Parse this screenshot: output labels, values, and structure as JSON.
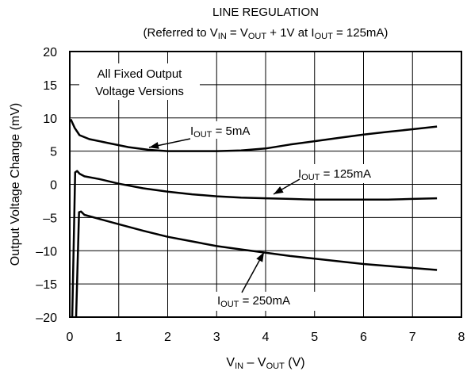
{
  "chart_data": {
    "type": "line",
    "title": "LINE REGULATION",
    "subtitle": "(Referred to V_IN = V_OUT + 1V at I_OUT = 125mA)",
    "subtitle_parts": [
      "(Referred to V",
      "IN",
      " = V",
      "OUT",
      " + 1V at I",
      "OUT",
      " = 125mA)"
    ],
    "xlabel_parts": [
      "V",
      "IN",
      " – V",
      "OUT",
      " (V)"
    ],
    "ylabel": "Output Voltage Change (mV)",
    "xlim": [
      0,
      8
    ],
    "ylim": [
      -20,
      20
    ],
    "x_ticks": [
      "0",
      "1",
      "2",
      "3",
      "4",
      "5",
      "6",
      "7",
      "8"
    ],
    "y_ticks": [
      "20",
      "15",
      "10",
      "5",
      "0",
      "–5",
      "–10",
      "–15",
      "–20"
    ],
    "grid": true,
    "inset_label": [
      "All Fixed Output",
      "Voltage Versions"
    ],
    "series": [
      {
        "name": "I_OUT = 5mA",
        "label_parts": [
          "I",
          "OUT",
          " = 5mA"
        ],
        "points": [
          [
            0.02,
            9.8
          ],
          [
            0.1,
            8.5
          ],
          [
            0.2,
            7.4
          ],
          [
            0.4,
            6.8
          ],
          [
            0.8,
            6.2
          ],
          [
            1.2,
            5.6
          ],
          [
            1.6,
            5.2
          ],
          [
            2.0,
            5.0
          ],
          [
            2.5,
            5.0
          ],
          [
            3.0,
            5.0
          ],
          [
            3.5,
            5.1
          ],
          [
            4.0,
            5.4
          ],
          [
            4.5,
            6.0
          ],
          [
            5.0,
            6.5
          ],
          [
            5.5,
            7.0
          ],
          [
            6.0,
            7.5
          ],
          [
            6.5,
            7.9
          ],
          [
            7.0,
            8.3
          ],
          [
            7.5,
            8.7
          ]
        ]
      },
      {
        "name": "I_OUT = 125mA",
        "label_parts": [
          "I",
          "OUT",
          " = 125mA"
        ],
        "points": [
          [
            0.05,
            -20
          ],
          [
            0.11,
            1.8
          ],
          [
            0.15,
            2.0
          ],
          [
            0.2,
            1.6
          ],
          [
            0.3,
            1.2
          ],
          [
            0.6,
            0.8
          ],
          [
            1.0,
            0.1
          ],
          [
            1.5,
            -0.6
          ],
          [
            2.0,
            -1.1
          ],
          [
            2.5,
            -1.5
          ],
          [
            3.0,
            -1.8
          ],
          [
            3.5,
            -2.0
          ],
          [
            4.0,
            -2.1
          ],
          [
            4.5,
            -2.2
          ],
          [
            5.0,
            -2.3
          ],
          [
            5.5,
            -2.3
          ],
          [
            6.0,
            -2.3
          ],
          [
            6.5,
            -2.3
          ],
          [
            7.0,
            -2.2
          ],
          [
            7.5,
            -2.1
          ]
        ]
      },
      {
        "name": "I_OUT = 250mA",
        "label_parts": [
          "I",
          "OUT",
          " = 250mA"
        ],
        "points": [
          [
            0.13,
            -20
          ],
          [
            0.19,
            -4.2
          ],
          [
            0.23,
            -4.1
          ],
          [
            0.3,
            -4.6
          ],
          [
            0.6,
            -5.2
          ],
          [
            1.0,
            -6.0
          ],
          [
            1.5,
            -7.0
          ],
          [
            2.0,
            -7.9
          ],
          [
            2.5,
            -8.6
          ],
          [
            3.0,
            -9.3
          ],
          [
            3.5,
            -9.8
          ],
          [
            4.0,
            -10.3
          ],
          [
            4.5,
            -10.8
          ],
          [
            5.0,
            -11.2
          ],
          [
            5.5,
            -11.6
          ],
          [
            6.0,
            -12.0
          ],
          [
            6.5,
            -12.3
          ],
          [
            7.0,
            -12.6
          ],
          [
            7.5,
            -12.9
          ]
        ]
      }
    ]
  }
}
